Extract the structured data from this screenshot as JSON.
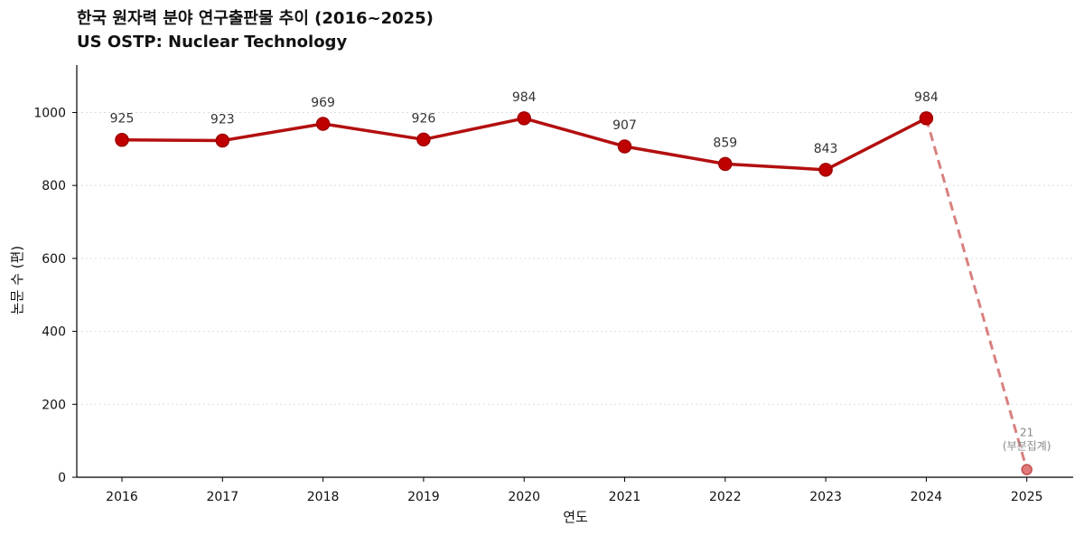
{
  "chart_data": {
    "type": "line",
    "title": "한국 원자력 분야 연구출판물 추이 (2016~2025)",
    "subtitle": "US OSTP: Nuclear Technology",
    "xlabel": "연도",
    "ylabel": "논문 수 (편)",
    "ylim": [
      0,
      1130
    ],
    "yticks": [
      0,
      200,
      400,
      600,
      800,
      1000
    ],
    "grid": "horizontal dotted",
    "x": [
      "2016",
      "2017",
      "2018",
      "2019",
      "2020",
      "2021",
      "2022",
      "2023",
      "2024",
      "2025"
    ],
    "values": [
      925,
      923,
      969,
      926,
      984,
      907,
      859,
      843,
      984,
      21
    ],
    "data_labels": [
      "925",
      "923",
      "969",
      "926",
      "984",
      "907",
      "859",
      "843",
      "984",
      "21"
    ],
    "partial_note": "(부분집계)",
    "partial_from_index": 9,
    "colors": {
      "line": "#b30f0f",
      "partial": "#d98080",
      "grid": "#dddddd"
    }
  }
}
